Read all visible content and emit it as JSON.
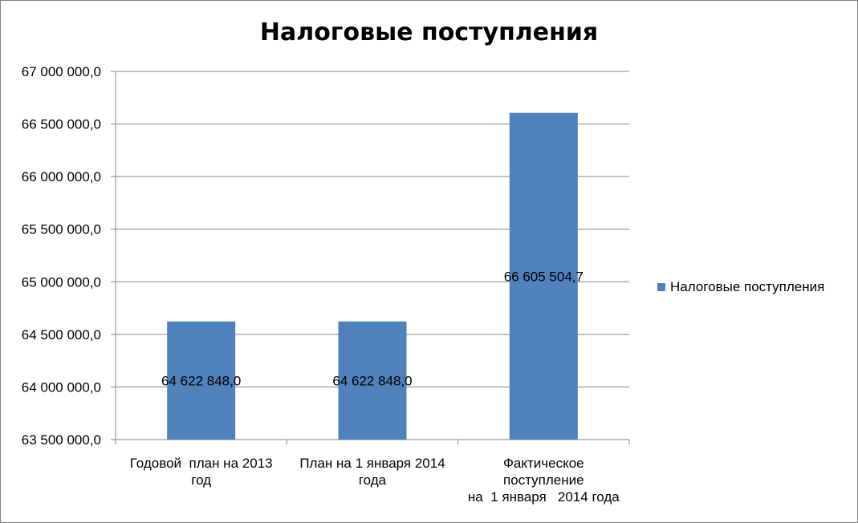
{
  "chart_data": {
    "type": "bar",
    "title": "Налоговые поступления",
    "categories": [
      [
        "Годовой  план на 2013",
        "год"
      ],
      [
        "План на 1 января 2014",
        "года"
      ],
      [
        "Фактическое",
        "поступление",
        "на  1 января   2014 года"
      ]
    ],
    "series": [
      {
        "name": "Налоговые поступления",
        "values": [
          64622848.0,
          64622848.0,
          66605504.7
        ],
        "data_labels": [
          "64 622 848,0",
          "64 622 848,0",
          "66 605 504,7"
        ],
        "color": "#4F81BD"
      }
    ],
    "ylim": [
      63500000,
      67000000
    ],
    "yticks": [
      {
        "value": 63500000,
        "label": "63 500 000,0"
      },
      {
        "value": 64000000,
        "label": "64 000 000,0"
      },
      {
        "value": 64500000,
        "label": "64 500 000,0"
      },
      {
        "value": 65000000,
        "label": "65 000 000,0"
      },
      {
        "value": 65500000,
        "label": "65 500 000,0"
      },
      {
        "value": 66000000,
        "label": "66 000 000,0"
      },
      {
        "value": 66500000,
        "label": "66 500 000,0"
      },
      {
        "value": 67000000,
        "label": "67 000 000,0"
      }
    ],
    "grid": true,
    "legend_position": "right",
    "gridline_color": "#868686"
  }
}
